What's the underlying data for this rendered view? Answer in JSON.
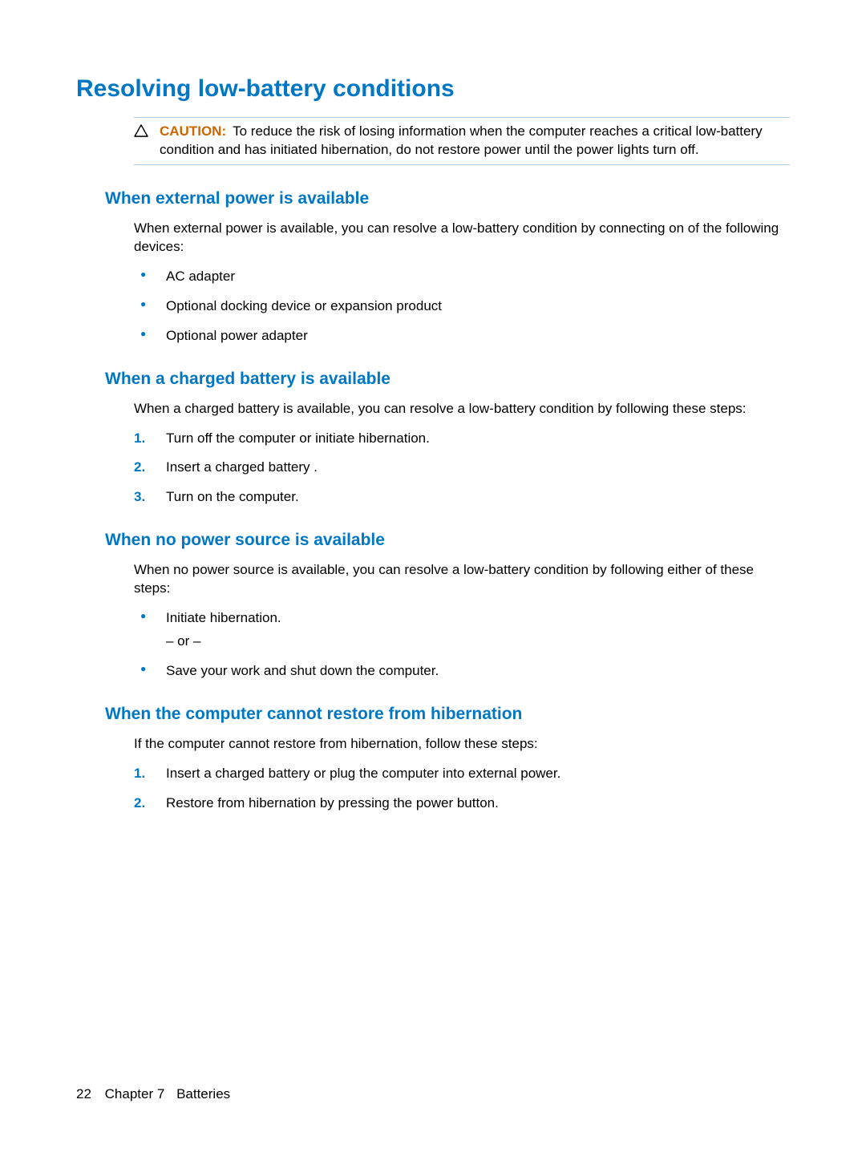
{
  "colors": {
    "heading": "#0077c5",
    "subheading": "#0077c5",
    "caution_label": "#cc6600",
    "caution_border": "#a6c8e4",
    "bullet": "#0077c5",
    "number": "#0077c5",
    "body": "#000000"
  },
  "title": "Resolving low-battery conditions",
  "caution": {
    "label": "CAUTION:",
    "text": "To reduce the risk of losing information when the computer reaches a critical low-battery condition and has initiated hibernation, do not restore power until the power lights turn off."
  },
  "sections": [
    {
      "heading": "When external power is available",
      "intro": "When external power is available, you can resolve a low-battery condition by connecting on of the following devices:",
      "bullets": [
        "AC adapter",
        "Optional docking device or expansion product",
        "Optional power adapter"
      ]
    },
    {
      "heading": "When a charged battery is available",
      "intro": "When a charged battery is available, you can resolve a low-battery condition by following these steps:",
      "steps": [
        "Turn off the computer or initiate hibernation.",
        "Insert a charged battery .",
        "Turn on the computer."
      ]
    },
    {
      "heading": "When no power source is available",
      "intro": "When no power source is available, you can resolve a low-battery condition by following either of these steps:",
      "bullets_or": [
        "Initiate hibernation.",
        "Save your work and shut down the computer."
      ],
      "or_text": "– or –"
    },
    {
      "heading": "When the computer cannot restore from hibernation",
      "intro": "If the computer cannot restore from hibernation, follow these steps:",
      "steps": [
        "Insert a charged battery or plug the computer into external power.",
        "Restore from hibernation by pressing the power button."
      ]
    }
  ],
  "footer": {
    "page_number": "22",
    "chapter_label": "Chapter 7",
    "chapter_title": "Batteries"
  }
}
